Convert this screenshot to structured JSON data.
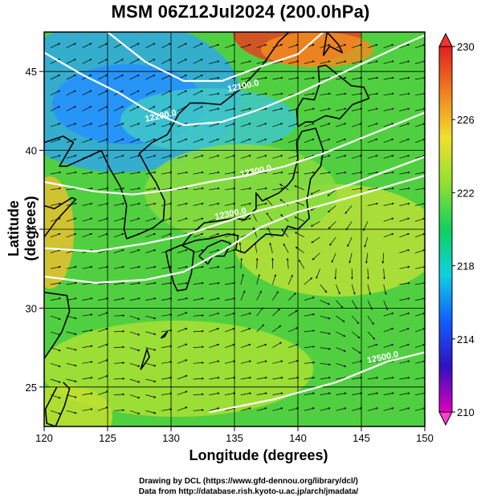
{
  "title": "MSM 06Z12Jul2024 (200.0hPa)",
  "x_axis": {
    "label": "Longitude (degrees)",
    "range": [
      120,
      150
    ],
    "ticks": [
      "120",
      "125",
      "130",
      "135",
      "140",
      "145",
      "150"
    ]
  },
  "y_axis": {
    "label": "Latitude (degrees)",
    "range": [
      22.5,
      47.5
    ],
    "ticks": [
      "25",
      "30",
      "35",
      "40",
      "45"
    ]
  },
  "colorbar": {
    "range": [
      210,
      230
    ],
    "ticks": [
      "210",
      "214",
      "218",
      "222",
      "226",
      "230"
    ],
    "colors": [
      "#e000c0",
      "#3010c0",
      "#1060ff",
      "#10d0e0",
      "#10d060",
      "#90e030",
      "#f0e030",
      "#f08020",
      "#e02020"
    ]
  },
  "contours": {
    "labels": [
      "12100.0",
      "12200.0",
      "12300.0",
      "12300.0",
      "12500.0"
    ],
    "color": "#ffffff"
  },
  "credits": [
    "Drawing by DCL (https://www.gfd-dennou.org/library/dcl/)",
    "Data from http://database.rish.kyoto-u.ac.jp/arch/jmadata/"
  ],
  "colors": {
    "background": "#ffffff",
    "coast": "#000000",
    "vector": "#000000"
  }
}
